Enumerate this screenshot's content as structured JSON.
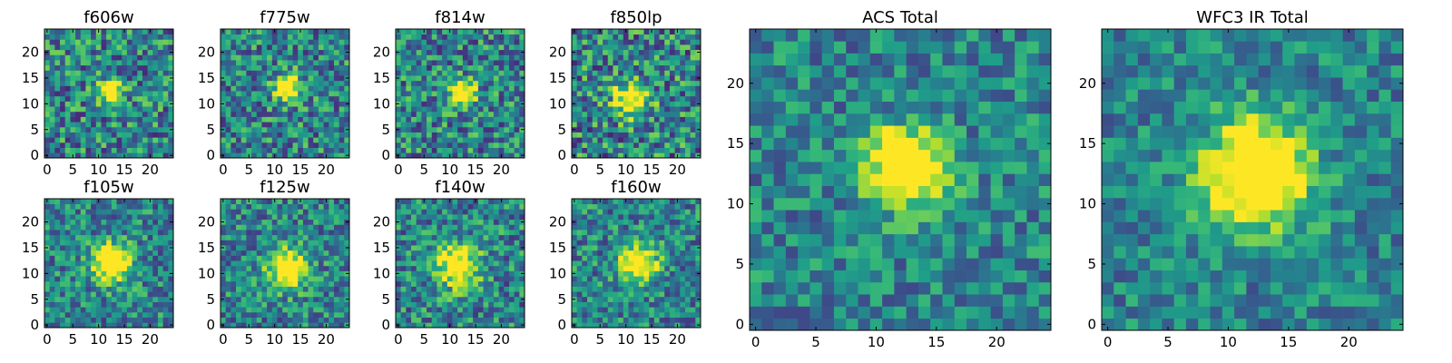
{
  "chart_data": [
    {
      "type": "heatmap",
      "title": "f606w",
      "seed": 11,
      "sigma": 1.6,
      "amp": 0.9,
      "cx": 12.5,
      "cy": 12.5,
      "noise": 0.34,
      "xticks": [
        0,
        5,
        10,
        15,
        20
      ],
      "yticks": [
        0,
        5,
        10,
        15,
        20
      ],
      "xlim": [
        0,
        24
      ],
      "ylim": [
        0,
        24
      ]
    },
    {
      "type": "heatmap",
      "title": "f775w",
      "seed": 23,
      "sigma": 1.8,
      "amp": 0.85,
      "cx": 12.5,
      "cy": 13,
      "noise": 0.32,
      "xticks": [
        0,
        5,
        10,
        15,
        20
      ],
      "yticks": [
        0,
        5,
        10,
        15,
        20
      ],
      "xlim": [
        0,
        24
      ],
      "ylim": [
        0,
        24
      ]
    },
    {
      "type": "heatmap",
      "title": "f814w",
      "seed": 37,
      "sigma": 1.7,
      "amp": 0.9,
      "cx": 12.5,
      "cy": 12,
      "noise": 0.33,
      "xticks": [
        0,
        5,
        10,
        15,
        20
      ],
      "yticks": [
        0,
        5,
        10,
        15,
        20
      ],
      "xlim": [
        0,
        24
      ],
      "ylim": [
        0,
        24
      ]
    },
    {
      "type": "heatmap",
      "title": "f850lp",
      "seed": 41,
      "sigma": 2.4,
      "amp": 0.7,
      "cx": 11,
      "cy": 11,
      "noise": 0.36,
      "xticks": [
        0,
        5,
        10,
        15,
        20
      ],
      "yticks": [
        0,
        5,
        10,
        15,
        20
      ],
      "xlim": [
        0,
        24
      ],
      "ylim": [
        0,
        24
      ]
    },
    {
      "type": "heatmap",
      "title": "f105w",
      "seed": 53,
      "sigma": 2.6,
      "amp": 0.85,
      "cx": 12.5,
      "cy": 12,
      "noise": 0.28,
      "xticks": [
        0,
        5,
        10,
        15,
        20
      ],
      "yticks": [
        0,
        5,
        10,
        15,
        20
      ],
      "xlim": [
        0,
        24
      ],
      "ylim": [
        0,
        24
      ]
    },
    {
      "type": "heatmap",
      "title": "f125w",
      "seed": 67,
      "sigma": 2.6,
      "amp": 0.85,
      "cx": 12.5,
      "cy": 11,
      "noise": 0.28,
      "xticks": [
        0,
        5,
        10,
        15,
        20
      ],
      "yticks": [
        0,
        5,
        10,
        15,
        20
      ],
      "xlim": [
        0,
        24
      ],
      "ylim": [
        0,
        24
      ]
    },
    {
      "type": "heatmap",
      "title": "f140w",
      "seed": 71,
      "sigma": 3.0,
      "amp": 0.75,
      "cx": 11.5,
      "cy": 11.5,
      "noise": 0.3,
      "xticks": [
        0,
        5,
        10,
        15,
        20
      ],
      "yticks": [
        0,
        5,
        10,
        15,
        20
      ],
      "xlim": [
        0,
        24
      ],
      "ylim": [
        0,
        24
      ]
    },
    {
      "type": "heatmap",
      "title": "f160w",
      "seed": 83,
      "sigma": 2.5,
      "amp": 0.85,
      "cx": 12.5,
      "cy": 12,
      "noise": 0.28,
      "xticks": [
        0,
        5,
        10,
        15,
        20
      ],
      "yticks": [
        0,
        5,
        10,
        15,
        20
      ],
      "xlim": [
        0,
        24
      ],
      "ylim": [
        0,
        24
      ]
    },
    {
      "type": "heatmap",
      "title": "ACS Total",
      "seed": 97,
      "sigma": 2.2,
      "amp": 1.0,
      "cx": 12.5,
      "cy": 13,
      "noise": 0.24,
      "xticks": [
        0,
        5,
        10,
        15,
        20
      ],
      "yticks": [
        0,
        5,
        10,
        15,
        20
      ],
      "xlim": [
        0,
        24
      ],
      "ylim": [
        0,
        24
      ]
    },
    {
      "type": "heatmap",
      "title": "WFC3 IR Total",
      "seed": 101,
      "sigma": 3.0,
      "amp": 1.0,
      "cx": 12.5,
      "cy": 12.5,
      "noise": 0.22,
      "xticks": [
        0,
        5,
        10,
        15,
        20
      ],
      "yticks": [
        0,
        5,
        10,
        15,
        20
      ],
      "xlim": [
        0,
        24
      ],
      "ylim": [
        0,
        24
      ]
    }
  ],
  "colormap": "viridis",
  "grid": false
}
